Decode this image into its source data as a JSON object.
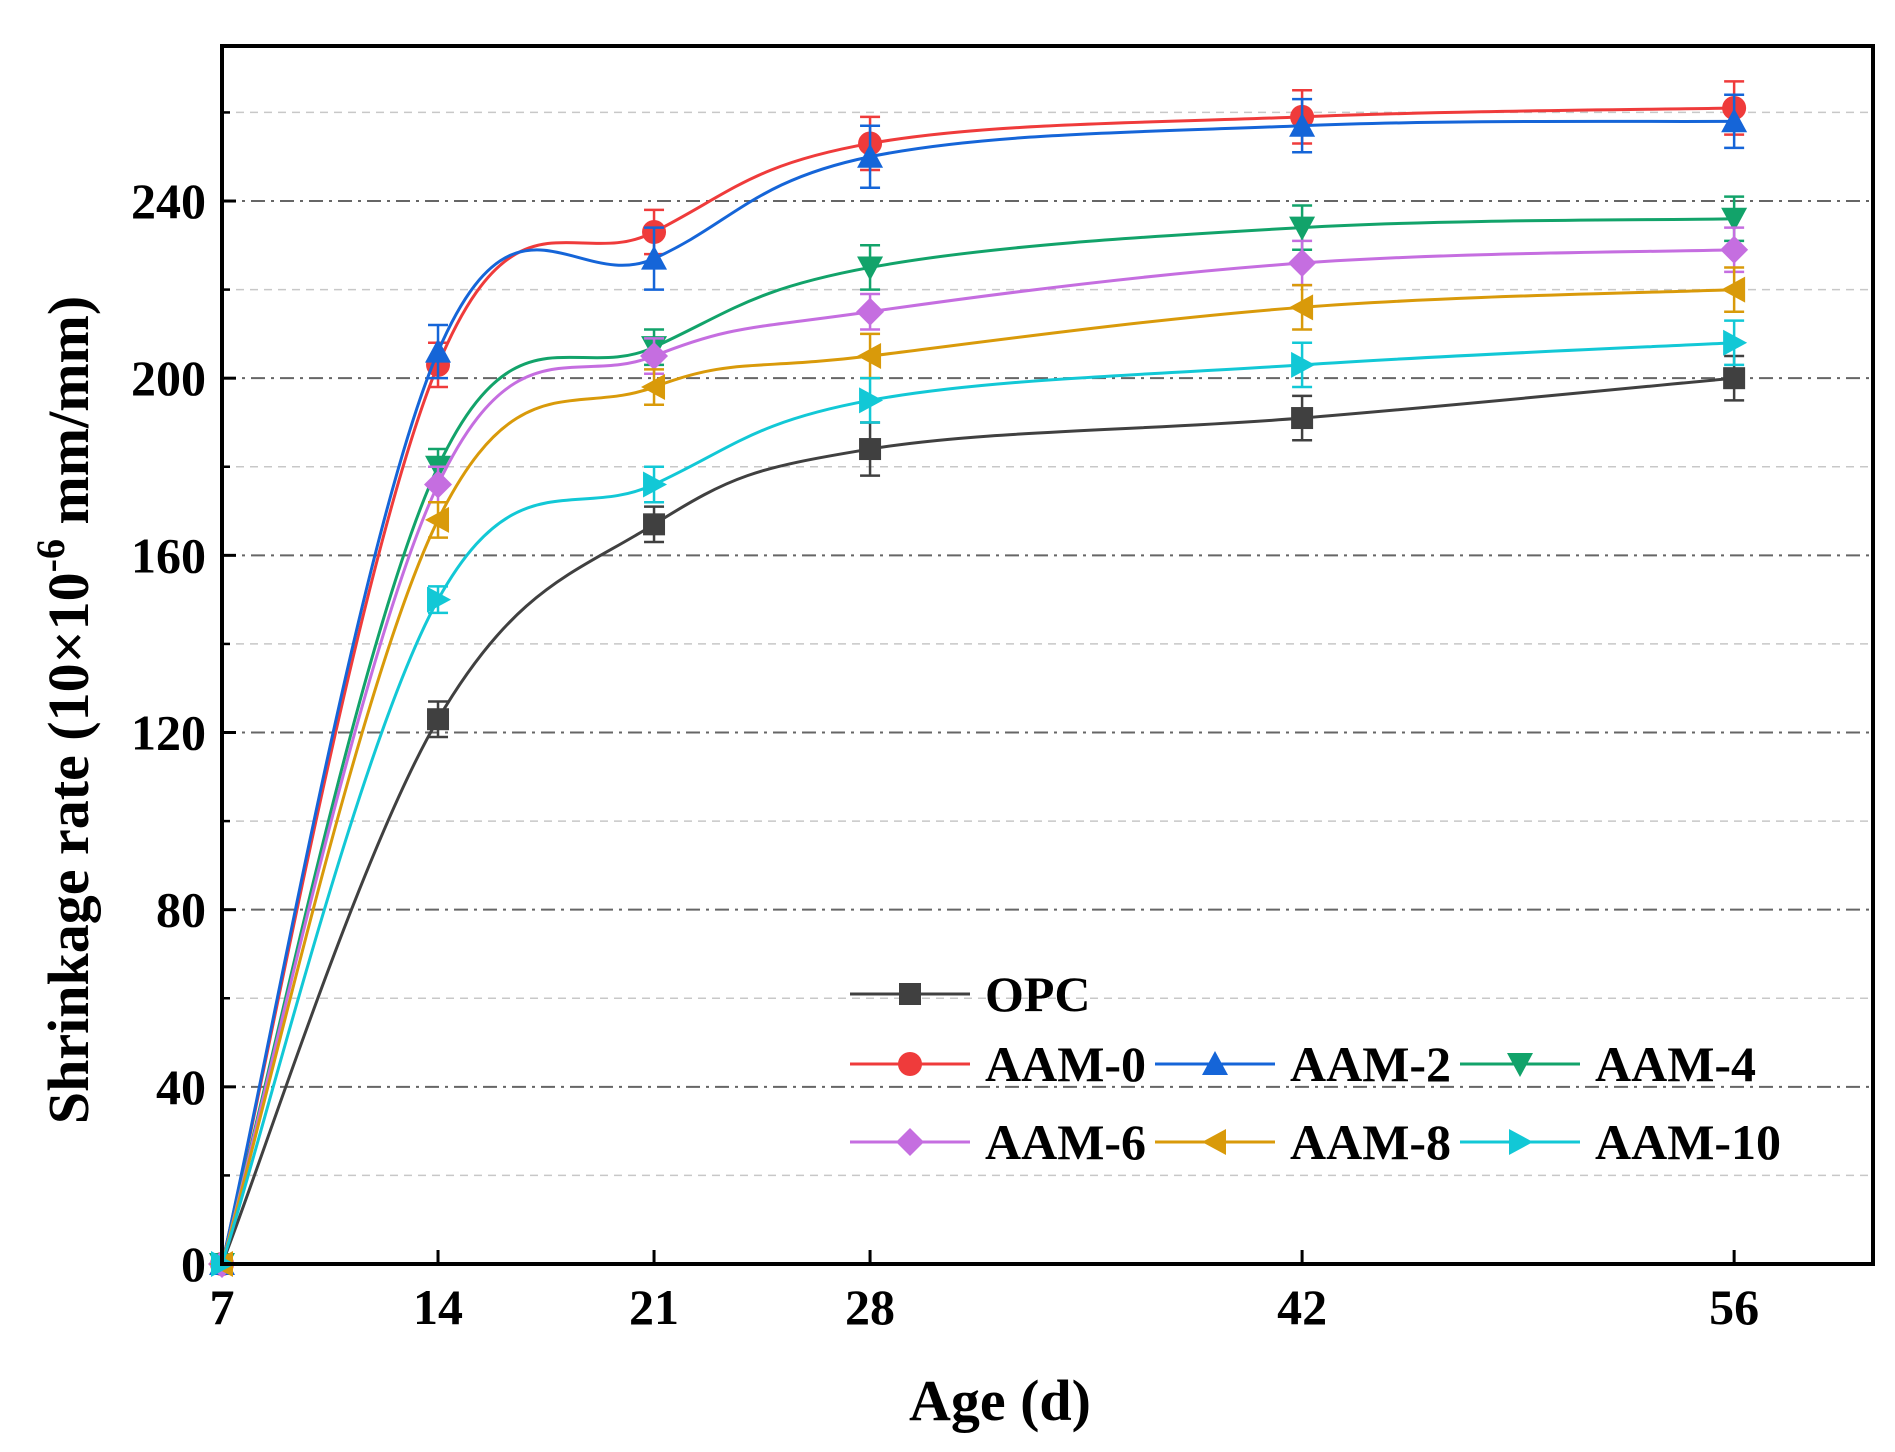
{
  "chart_data": {
    "type": "line",
    "xlabel": "Age (d)",
    "ylabel_main": "Shrinkage rate (10×10",
    "ylabel_sup": "-6",
    "ylabel_unit": " mm/mm)",
    "x": [
      7,
      14,
      21,
      28,
      42,
      56
    ],
    "x_tick_labels": [
      "7",
      "14",
      "21",
      "28",
      "42",
      "56"
    ],
    "xlim": [
      7,
      60.5
    ],
    "ylim": [
      0,
      275
    ],
    "y_ticks": [
      0,
      40,
      80,
      120,
      160,
      200,
      240
    ],
    "y_tick_labels": [
      "0",
      "40",
      "80",
      "120",
      "160",
      "200",
      "240"
    ],
    "y_minor_ticks": [
      20,
      60,
      100,
      140,
      180,
      220,
      260
    ],
    "grid": true,
    "legend_position": "bottom-right",
    "series": [
      {
        "name": "OPC",
        "color": "#404040",
        "marker": "square",
        "values": [
          0,
          123,
          167,
          184,
          191,
          200
        ],
        "errors": [
          0,
          4,
          4,
          6,
          5,
          5
        ]
      },
      {
        "name": "AAM-0",
        "color": "#ef3b3b",
        "marker": "circle",
        "values": [
          0,
          203,
          233,
          253,
          259,
          261
        ],
        "errors": [
          0,
          5,
          5,
          6,
          6,
          6
        ]
      },
      {
        "name": "AAM-2",
        "color": "#1565d8",
        "marker": "triangle-up",
        "values": [
          0,
          206,
          227,
          250,
          257,
          258
        ],
        "errors": [
          0,
          6,
          7,
          7,
          6,
          6
        ]
      },
      {
        "name": "AAM-4",
        "color": "#12a36a",
        "marker": "triangle-down",
        "values": [
          0,
          180,
          207,
          225,
          234,
          236
        ],
        "errors": [
          0,
          4,
          4,
          5,
          5,
          5
        ]
      },
      {
        "name": "AAM-6",
        "color": "#c56ee0",
        "marker": "diamond",
        "values": [
          0,
          176,
          205,
          215,
          226,
          229
        ],
        "errors": [
          0,
          4,
          4,
          4,
          5,
          5
        ]
      },
      {
        "name": "AAM-8",
        "color": "#d99a0a",
        "marker": "triangle-left",
        "values": [
          0,
          168,
          198,
          205,
          216,
          220
        ],
        "errors": [
          0,
          4,
          4,
          5,
          5,
          5
        ]
      },
      {
        "name": "AAM-10",
        "color": "#12c8d6",
        "marker": "triangle-right",
        "values": [
          0,
          150,
          176,
          195,
          203,
          208
        ],
        "errors": [
          0,
          3,
          4,
          5,
          5,
          5
        ]
      }
    ]
  }
}
